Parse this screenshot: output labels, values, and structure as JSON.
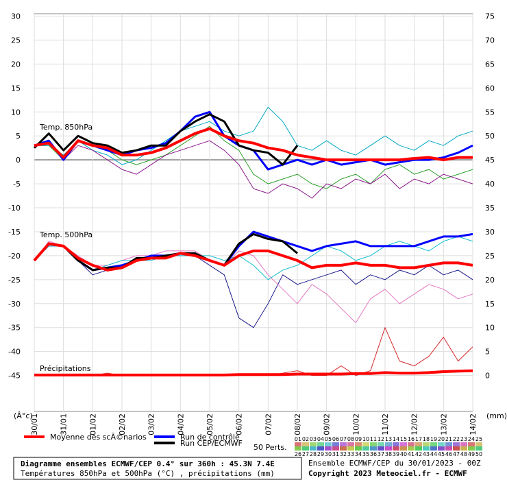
{
  "chart_data": {
    "type": "line",
    "categories": [
      "30/01",
      null,
      "31/01",
      null,
      "01/02",
      null,
      "02/02",
      null,
      "03/02",
      null,
      "04/02",
      null,
      "05/02",
      null,
      "06/02",
      null,
      "07/02",
      null,
      "08/02",
      null,
      "09/02",
      null,
      "10/02",
      null,
      "11/02",
      null,
      "12/02",
      null,
      "13/02",
      null,
      "14/02"
    ],
    "ylim": [
      -52.5,
      30.5
    ],
    "yticks": [
      -45,
      -40,
      -35,
      -30,
      -25,
      -20,
      -15,
      -10,
      -5,
      0,
      5,
      10,
      15,
      20,
      25,
      30
    ],
    "y2lim": [
      -7.5,
      75.5
    ],
    "y2ticks": [
      0,
      5,
      10,
      15,
      20,
      25,
      30,
      35,
      40,
      45,
      50,
      55,
      60,
      65,
      70,
      75
    ],
    "y_unit": "(Â°c)",
    "y2_unit": "(mm)",
    "grid": true,
    "annotations": [
      "Temp. 850hPa",
      "Temp. 500hPa",
      "Précipitations"
    ],
    "perturbations_label": "50 Perts.",
    "perturbation_numbers": [
      "01",
      "02",
      "03",
      "04",
      "05",
      "06",
      "07",
      "08",
      "09",
      "10",
      "11",
      "12",
      "13",
      "14",
      "15",
      "16",
      "17",
      "18",
      "19",
      "20",
      "21",
      "22",
      "23",
      "24",
      "25",
      "26",
      "27",
      "28",
      "29",
      "30",
      "31",
      "32",
      "33",
      "34",
      "35",
      "36",
      "37",
      "38",
      "39",
      "40",
      "41",
      "42",
      "43",
      "44",
      "45",
      "46",
      "47",
      "48",
      "49",
      "50"
    ],
    "series": [
      {
        "color": "#2ca02c",
        "line_width": 1,
        "axis": "y",
        "values": [
          3,
          3,
          0,
          4,
          3,
          2,
          0,
          -1,
          0,
          1,
          3,
          5,
          7,
          4,
          2,
          -3,
          -5,
          -4,
          -3,
          -5,
          -6,
          -4,
          -3,
          -5,
          -2,
          -1,
          -3,
          -2,
          -4,
          -3,
          -2
        ]
      },
      {
        "color": "#00a8c0",
        "line_width": 1,
        "axis": "y",
        "values": [
          3,
          3,
          1,
          4,
          2,
          1,
          -1,
          0,
          2,
          4,
          6,
          7,
          8,
          6,
          5,
          6,
          11,
          8,
          3,
          2,
          4,
          2,
          1,
          3,
          5,
          3,
          2,
          4,
          3,
          5,
          6
        ]
      },
      {
        "color": "#8b1a8b",
        "line_width": 1,
        "axis": "y",
        "values": [
          3,
          4,
          0,
          3,
          2,
          0,
          -2,
          -3,
          -1,
          1,
          2,
          3,
          4,
          2,
          -1,
          -6,
          -7,
          -5,
          -6,
          -8,
          -5,
          -6,
          -4,
          -5,
          -3,
          -6,
          -4,
          -5,
          -3,
          -4,
          -5
        ]
      },
      {
        "color": "#1a1a8b",
        "line_width": 1,
        "axis": "y",
        "values": [
          -21,
          -18,
          -18,
          -21,
          -24,
          -23,
          -22,
          -21,
          -20,
          -20,
          -20,
          -20,
          -22,
          -24,
          -33,
          -35,
          -30,
          -24,
          -26,
          -25,
          -24,
          -23,
          -26,
          -24,
          -25,
          -23,
          -24,
          -22,
          -24,
          -23,
          -25
        ]
      },
      {
        "color": "#e377c2",
        "line_width": 1,
        "axis": "y",
        "values": [
          -21,
          -17,
          -18,
          -20,
          -22,
          -22,
          -21,
          -20,
          -20,
          -19,
          -19,
          -19,
          -21,
          -22,
          -19,
          -20,
          -24,
          -27,
          -30,
          -26,
          -28,
          -31,
          -34,
          -29,
          -27,
          -30,
          -28,
          -26,
          -27,
          -29,
          -28
        ]
      },
      {
        "color": "#17becf",
        "line_width": 1,
        "axis": "y",
        "values": [
          -21,
          -18,
          -18,
          -21,
          -23,
          -22,
          -21,
          -21,
          -21,
          -20,
          -20,
          -20,
          -20,
          -21,
          -20,
          -22,
          -25,
          -23,
          -22,
          -20,
          -18,
          -19,
          -21,
          -20,
          -18,
          -17,
          -18,
          -19,
          -17,
          -16,
          -17
        ]
      },
      {
        "color": "#d62728",
        "line_width": 1,
        "axis": "y2",
        "values": [
          0,
          0,
          0,
          0,
          0,
          0.5,
          0,
          0,
          0,
          0,
          0,
          0,
          0,
          0,
          0,
          0,
          0,
          0.5,
          1,
          0,
          0,
          2,
          0,
          1,
          10,
          3,
          2,
          4,
          8,
          3,
          6
        ]
      },
      {
        "name": "Run de contrôle",
        "color": "#0000ff",
        "line_width": 3,
        "axis": "y",
        "values": [
          3,
          4,
          0,
          4,
          3,
          2,
          1,
          2,
          2.5,
          3.5,
          6,
          9,
          10,
          5,
          3,
          2,
          -2,
          -1,
          0,
          -1,
          0,
          -1,
          -0.5,
          0,
          -1,
          -0.5,
          0,
          0,
          0.5,
          1.5,
          3
        ]
      },
      {
        "color": "#0000ff",
        "line_width": 3,
        "axis": "y",
        "values": [
          -21,
          -17.5,
          -18,
          -21,
          -23,
          -22.5,
          -22,
          -21,
          -20,
          -20,
          -19.5,
          -20,
          -21,
          -22,
          -18,
          -15,
          -16,
          -17,
          -18,
          -19,
          -18,
          -17.5,
          -17,
          -18,
          -18,
          -18,
          -18,
          -17,
          -16,
          -16,
          -15.5
        ]
      },
      {
        "name": "Run CEP/ECMWF",
        "color": "#000000",
        "line_width": 3,
        "axis": "y",
        "values": [
          2.5,
          5.5,
          2,
          5,
          3.5,
          3,
          1.5,
          2,
          3,
          3,
          6,
          8,
          9.5,
          8,
          3,
          2,
          1.5,
          -1,
          3,
          null,
          null,
          null,
          null,
          null,
          null,
          null,
          null,
          null,
          null,
          null,
          null
        ]
      },
      {
        "color": "#000000",
        "line_width": 3,
        "axis": "y",
        "values": [
          -21,
          -17.5,
          -18,
          -21,
          -23,
          -22.5,
          -22.5,
          -20.5,
          -20.5,
          -20,
          -19.5,
          -19.5,
          -21,
          -22,
          -17.5,
          -15.5,
          -16.5,
          -17,
          -19.5,
          null,
          null,
          null,
          null,
          null,
          null,
          null,
          null,
          null,
          null,
          null,
          null
        ]
      },
      {
        "name": "Moyenne des scÃ©narios",
        "color": "#ff0000",
        "line_width": 4,
        "axis": "y",
        "values": [
          3,
          3.5,
          0.5,
          4,
          3,
          2.5,
          1,
          1,
          1.5,
          2.5,
          4,
          5.5,
          6.5,
          5,
          4,
          3.5,
          2.5,
          2,
          1,
          0.5,
          0,
          0,
          0,
          0,
          0,
          0,
          0.3,
          0.5,
          0,
          0.5,
          0.5
        ]
      },
      {
        "color": "#ff0000",
        "line_width": 4,
        "axis": "y",
        "values": [
          -21,
          -17.5,
          -18,
          -20.5,
          -22,
          -23,
          -22.5,
          -21,
          -20.5,
          -20.5,
          -19.5,
          -20,
          -21,
          -22,
          -20,
          -19,
          -19,
          -20,
          -21,
          -22.5,
          -22,
          -22,
          -21.5,
          -22,
          -22,
          -22.5,
          -22.5,
          -22,
          -21.5,
          -21.5,
          -22
        ]
      },
      {
        "color": "#ff0000",
        "line_width": 4,
        "axis": "y2",
        "values": [
          0.1,
          0.1,
          0.1,
          0.1,
          0.1,
          0.1,
          0.1,
          0.1,
          0.1,
          0.1,
          0.1,
          0.1,
          0.1,
          0.1,
          0.2,
          0.2,
          0.2,
          0.2,
          0.3,
          0.3,
          0.3,
          0.3,
          0.4,
          0.4,
          0.6,
          0.5,
          0.5,
          0.6,
          0.8,
          0.9,
          1
        ]
      }
    ]
  },
  "footer": {
    "title": "Diagramme ensembles ECMWF/CEP 0.4° sur 360h : 45.3N 7.4E",
    "subtitle": "Températures 850hPa et 500hPa (°C) , précipitations (mm)",
    "run": "Ensemble ECMWF/CEP du 30/01/2023 - 00Z",
    "copyright": "Copyright 2023 Meteociel.fr - ECMWF"
  }
}
